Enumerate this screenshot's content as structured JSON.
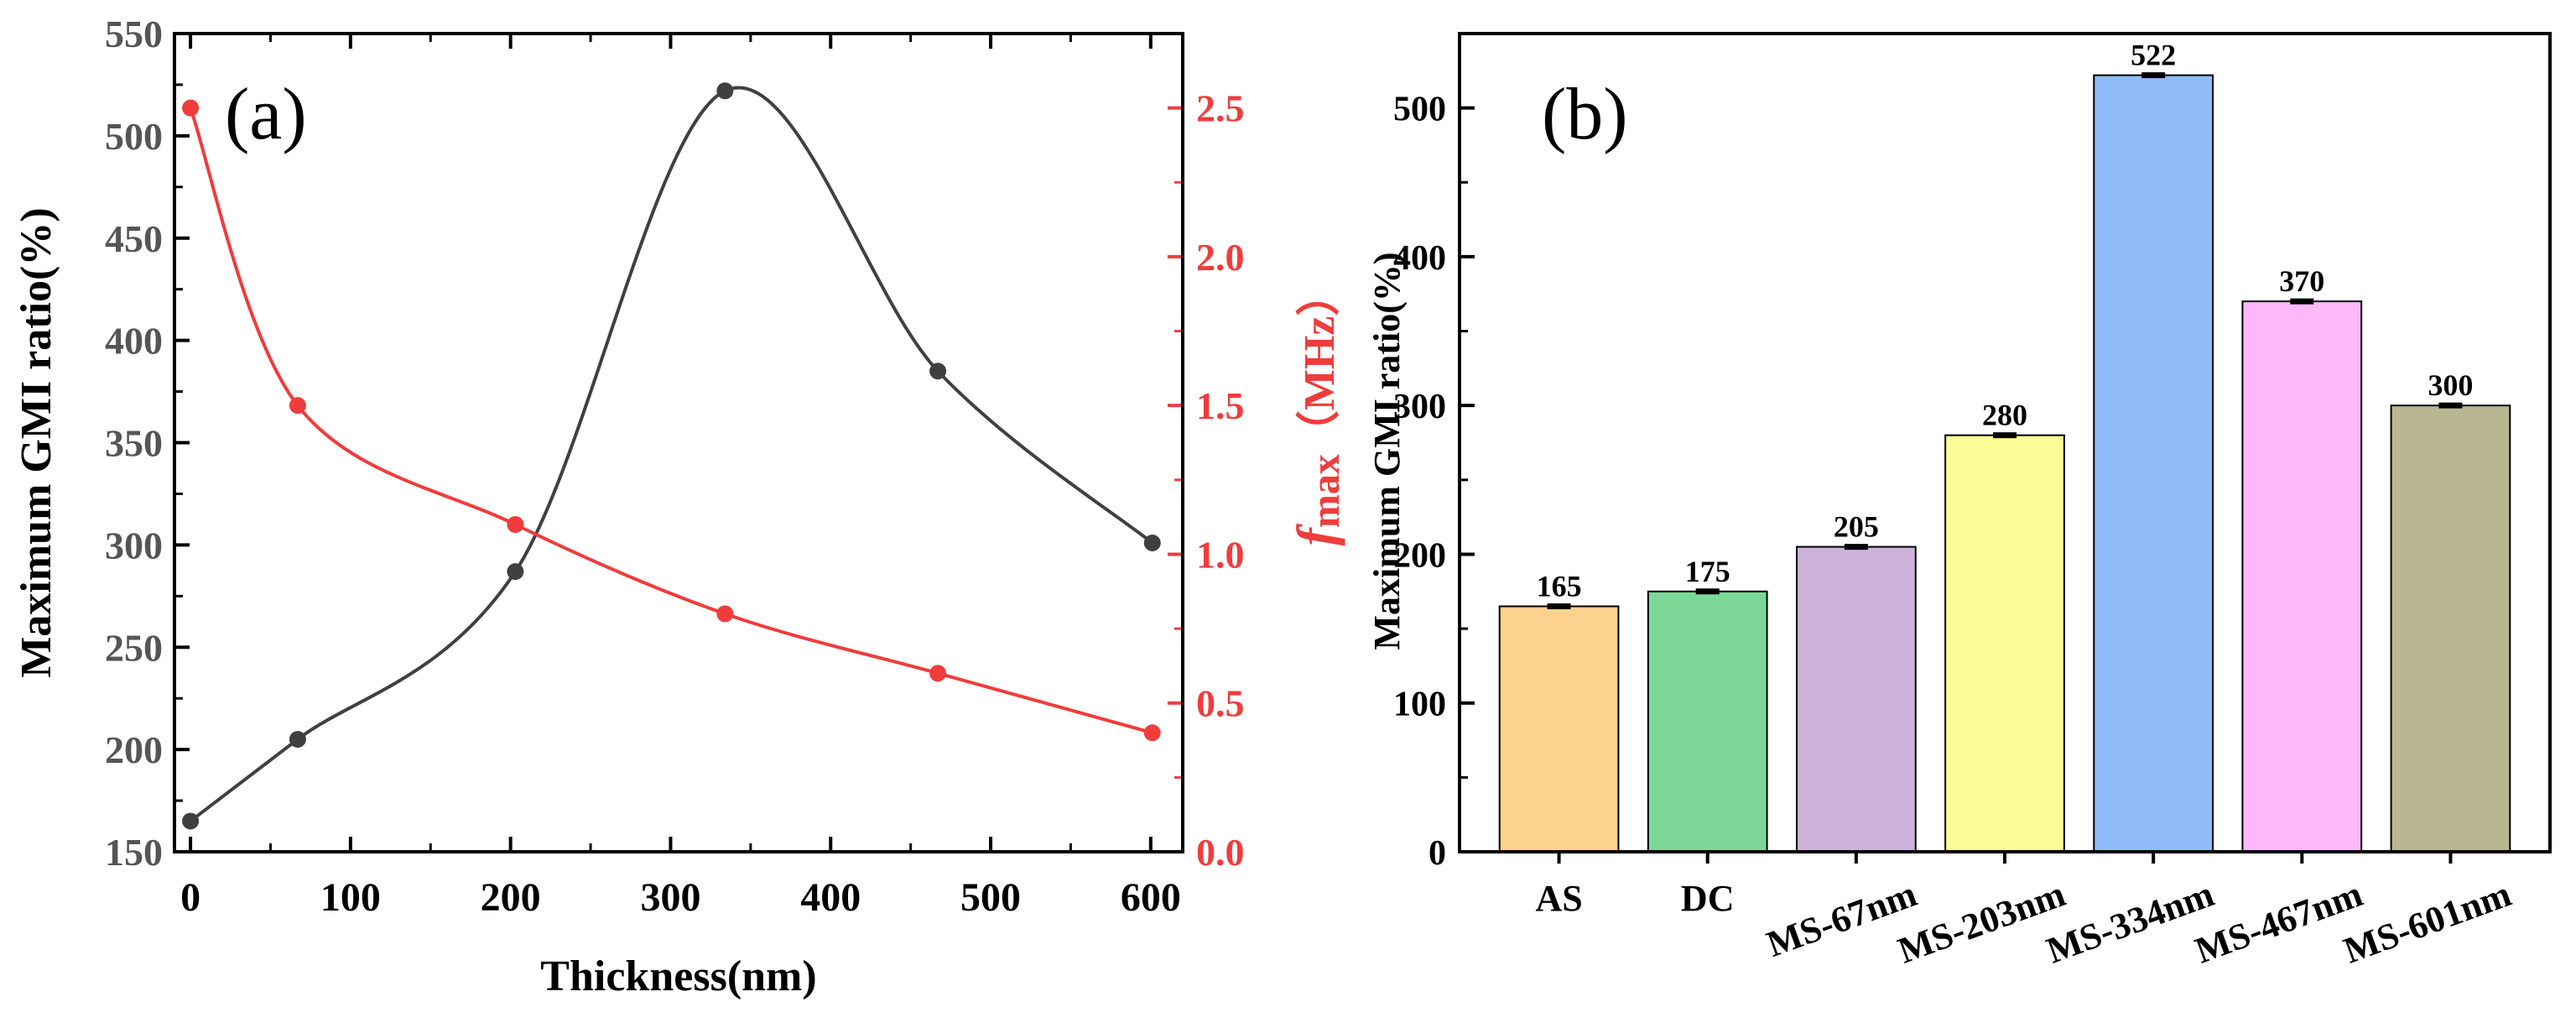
{
  "figure": {
    "panel_a_label": "(a)",
    "panel_b_label": "(b)"
  },
  "chart_data": [
    {
      "type": "line",
      "panel": "(a)",
      "xlabel": "Thickness(nm)",
      "ylabel": "Maximum GMI ratio(%)",
      "y2label_main": "f",
      "y2label_sub": "max",
      "y2label_unit": "（MHz）",
      "xlim": [
        -10,
        620
      ],
      "ylim": [
        150,
        550
      ],
      "y2lim": [
        0,
        2.75
      ],
      "xticks": [
        0,
        100,
        200,
        300,
        400,
        500,
        600
      ],
      "yticks": [
        150,
        200,
        250,
        300,
        350,
        400,
        450,
        500,
        550
      ],
      "y2ticks": [
        "0.0",
        "0.5",
        "1.0",
        "1.5",
        "2.0",
        "2.5"
      ],
      "series": [
        {
          "name": "Maximum GMI ratio",
          "axis": "left",
          "color": "#404040",
          "x": [
            0,
            67,
            203,
            334,
            467,
            601
          ],
          "values": [
            165,
            205,
            287,
            522,
            385,
            301
          ]
        },
        {
          "name": "fmax",
          "axis": "right",
          "color": "#f03c3c",
          "x": [
            0,
            67,
            203,
            334,
            467,
            601
          ],
          "values": [
            2.5,
            1.5,
            1.1,
            0.8,
            0.6,
            0.4
          ]
        }
      ]
    },
    {
      "type": "bar",
      "panel": "(b)",
      "ylabel": "Maximum GMI ratio(%)",
      "ylim": [
        0,
        550
      ],
      "yticks": [
        0,
        100,
        200,
        300,
        400,
        500
      ],
      "categories": [
        "AS",
        "DC",
        "MS-67nm",
        "MS-203nm",
        "MS-334nm",
        "MS-467nm",
        "MS-601nm"
      ],
      "values": [
        165,
        175,
        205,
        280,
        522,
        370,
        300
      ],
      "data_labels": [
        "165",
        "175",
        "205",
        "280",
        "522",
        "370",
        "300"
      ],
      "colors": [
        "#fdd18e",
        "#7dd897",
        "#cdb3da",
        "#fdfb96",
        "#8fbcf8",
        "#fdb7fa",
        "#b8b791"
      ]
    }
  ]
}
